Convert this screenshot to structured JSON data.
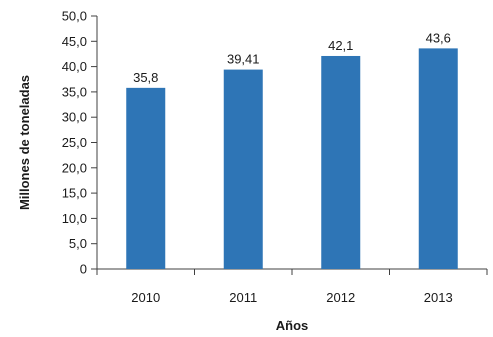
{
  "chart_data": {
    "type": "bar",
    "categories": [
      "2010",
      "2011",
      "2012",
      "2013"
    ],
    "values": [
      35.8,
      39.41,
      42.1,
      43.6
    ],
    "value_labels": [
      "35,8",
      "39,41",
      "42,1",
      "43,6"
    ],
    "xlabel": "Años",
    "ylabel": "Millones de toneladas",
    "ylim": [
      0,
      50
    ],
    "yticks": [
      0,
      5,
      10,
      15,
      20,
      25,
      30,
      35,
      40,
      45,
      50
    ],
    "ytick_labels": [
      "0",
      "5,0",
      "10,0",
      "15,0",
      "20,0",
      "25,0",
      "30,0",
      "35,0",
      "40,0",
      "45,0",
      "50,0"
    ],
    "grid": false,
    "bar_color": "#2e75b6"
  }
}
